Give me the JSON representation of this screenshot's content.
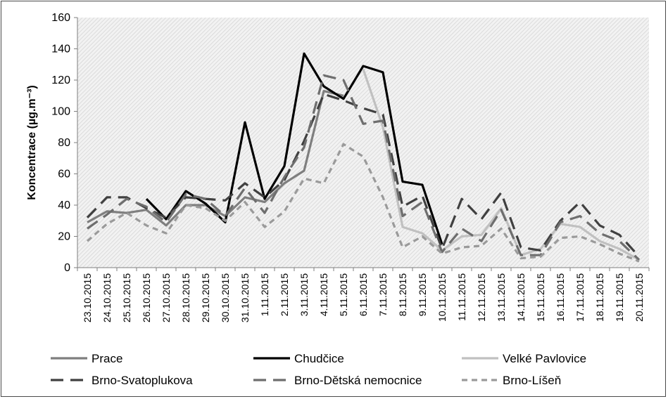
{
  "chart_data": {
    "type": "line",
    "title": "",
    "xlabel": "",
    "ylabel": "Koncentrace (µg.m⁻³)",
    "ylim": [
      0,
      160
    ],
    "yticks": [
      0,
      20,
      40,
      60,
      80,
      100,
      120,
      140,
      160
    ],
    "grid": false,
    "plot_background": "hatched light gray",
    "legend_position": "bottom",
    "categories": [
      "23.10.2015",
      "24.10.2015",
      "25.10.2015",
      "26.10.2015",
      "27.10.2015",
      "28.10.2015",
      "29.10.2015",
      "30.10.2015",
      "31.10.2015",
      "1.11.2015",
      "2.11.2015",
      "3.11.2015",
      "4.11.2015",
      "5.11.2015",
      "6.11.2015",
      "7.11.2015",
      "8.11.2015",
      "9.11.2015",
      "10.11.2015",
      "11.11.2015",
      "12.11.2015",
      "13.11.2015",
      "14.11.2015",
      "15.11.2015",
      "16.11.2015",
      "17.11.2015",
      "18.11.2015",
      "19.11.2015",
      "20.11.2015"
    ],
    "series": [
      {
        "name": "Prace",
        "color": "#7f7f7f",
        "dash": "solid",
        "values": [
          29,
          36,
          35,
          37,
          27,
          40,
          40,
          33,
          45,
          42,
          54,
          62,
          113,
          110,
          null,
          null,
          null,
          null,
          null,
          null,
          null,
          null,
          null,
          null,
          null,
          null,
          null,
          null,
          null
        ]
      },
      {
        "name": "Chudčice",
        "color": "#000000",
        "dash": "solid",
        "values": [
          null,
          null,
          null,
          44,
          31,
          49,
          41,
          29,
          93,
          44,
          65,
          137,
          116,
          108,
          129,
          125,
          55,
          53,
          15,
          null,
          null,
          null,
          null,
          null,
          null,
          null,
          null,
          null,
          null
        ]
      },
      {
        "name": "Velké Pavlovice",
        "color": "#c0c0c0",
        "dash": "solid",
        "values": [
          null,
          null,
          null,
          null,
          null,
          null,
          null,
          null,
          null,
          null,
          null,
          null,
          null,
          null,
          127,
          90,
          26,
          22,
          11,
          20,
          21,
          38,
          8,
          12,
          28,
          26,
          17,
          12,
          5
        ]
      },
      {
        "name": "Brno-Svatoplukova",
        "color": "#404040",
        "dash": "long",
        "values": [
          32,
          45,
          45,
          38,
          32,
          45,
          44,
          43,
          54,
          45,
          56,
          81,
          111,
          107,
          102,
          98,
          39,
          46,
          12,
          44,
          31,
          48,
          13,
          11,
          30,
          42,
          27,
          21,
          7
        ]
      },
      {
        "name": "Brno-Dětská nemocnice",
        "color": "#6e6e6e",
        "dash": "long",
        "values": [
          25,
          34,
          44,
          39,
          29,
          47,
          44,
          33,
          51,
          35,
          58,
          77,
          123,
          120,
          92,
          94,
          33,
          42,
          10,
          25,
          17,
          37,
          8,
          8,
          29,
          33,
          22,
          17,
          5
        ]
      },
      {
        "name": "Brno-Líšeň",
        "color": "#9a9a9a",
        "dash": "short",
        "values": [
          17,
          28,
          35,
          27,
          22,
          40,
          38,
          30,
          42,
          26,
          36,
          57,
          54,
          79,
          71,
          45,
          13,
          20,
          9,
          13,
          14,
          25,
          6,
          7,
          19,
          20,
          15,
          9,
          4
        ]
      }
    ]
  }
}
